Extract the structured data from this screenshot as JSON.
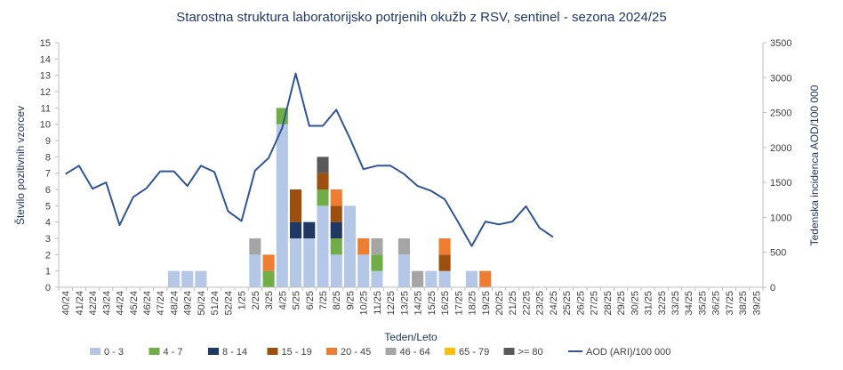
{
  "chart_data": {
    "type": "bar",
    "title": "Starostna struktura  laboratorijsko potrjenih okužb z RSV, sentinel - sezona 2024/25",
    "xlabel": "Teden/Leto",
    "ylabel": "Število pozitivnih vzorcev",
    "ylabel_right": "Tedenska incidenca AOD/100 000",
    "ylim": [
      0,
      15
    ],
    "ylim_right": [
      0,
      3500
    ],
    "yticks": [
      "0",
      "1",
      "2",
      "3",
      "4",
      "5",
      "6",
      "7",
      "8",
      "9",
      "10",
      "11",
      "12",
      "13",
      "14",
      "15"
    ],
    "yticks_right": [
      "0",
      "500",
      "1000",
      "1500",
      "2000",
      "2500",
      "3000",
      "3500"
    ],
    "stacked": true,
    "legend_position": "bottom",
    "categories": [
      "40/24",
      "41/24",
      "42/24",
      "43/24",
      "44/24",
      "45/24",
      "46/24",
      "47/24",
      "48/24",
      "49/24",
      "50/24",
      "51/24",
      "52/24",
      "1/25",
      "2/25",
      "3/25",
      "4/25",
      "5/25",
      "6/25",
      "7/25",
      "8/25",
      "9/25",
      "10/25",
      "11/25",
      "12/25",
      "13/25",
      "14/25",
      "15/25",
      "16/25",
      "17/25",
      "18/25",
      "19/25",
      "20/25",
      "21/25",
      "22/25",
      "23/25",
      "24/25",
      "25/25",
      "26/25",
      "27/25",
      "28/25",
      "29/25",
      "30/25",
      "31/25",
      "32/25",
      "33/25",
      "34/25",
      "35/25",
      "36/25",
      "37/25",
      "38/25",
      "39/25"
    ],
    "series": [
      {
        "name": "0 - 3",
        "color": "#b4c7e7",
        "values": [
          0,
          0,
          0,
          0,
          0,
          0,
          0,
          0,
          1,
          1,
          1,
          0,
          0,
          0,
          2,
          0,
          10,
          3,
          3,
          5,
          2,
          5,
          2,
          1,
          0,
          2,
          0,
          1,
          1,
          0,
          1,
          0,
          0,
          0,
          0,
          0,
          0,
          0,
          0,
          0,
          0,
          0,
          0,
          0,
          0,
          0,
          0,
          0,
          0,
          0,
          0,
          0
        ]
      },
      {
        "name": "4 - 7",
        "color": "#70ad47",
        "values": [
          0,
          0,
          0,
          0,
          0,
          0,
          0,
          0,
          0,
          0,
          0,
          0,
          0,
          0,
          0,
          1,
          1,
          0,
          0,
          1,
          1,
          0,
          0,
          1,
          0,
          0,
          0,
          0,
          0,
          0,
          0,
          0,
          0,
          0,
          0,
          0,
          0,
          0,
          0,
          0,
          0,
          0,
          0,
          0,
          0,
          0,
          0,
          0,
          0,
          0,
          0,
          0
        ]
      },
      {
        "name": "8 - 14",
        "color": "#203864",
        "values": [
          0,
          0,
          0,
          0,
          0,
          0,
          0,
          0,
          0,
          0,
          0,
          0,
          0,
          0,
          0,
          0,
          0,
          1,
          1,
          0,
          1,
          0,
          0,
          0,
          0,
          0,
          0,
          0,
          0,
          0,
          0,
          0,
          0,
          0,
          0,
          0,
          0,
          0,
          0,
          0,
          0,
          0,
          0,
          0,
          0,
          0,
          0,
          0,
          0,
          0,
          0,
          0
        ]
      },
      {
        "name": "15 - 19",
        "color": "#9c4f0f",
        "values": [
          0,
          0,
          0,
          0,
          0,
          0,
          0,
          0,
          0,
          0,
          0,
          0,
          0,
          0,
          0,
          0,
          0,
          2,
          0,
          1,
          1,
          0,
          0,
          0,
          0,
          0,
          0,
          0,
          1,
          0,
          0,
          0,
          0,
          0,
          0,
          0,
          0,
          0,
          0,
          0,
          0,
          0,
          0,
          0,
          0,
          0,
          0,
          0,
          0,
          0,
          0,
          0
        ]
      },
      {
        "name": "20 - 45",
        "color": "#ed7d31",
        "values": [
          0,
          0,
          0,
          0,
          0,
          0,
          0,
          0,
          0,
          0,
          0,
          0,
          0,
          0,
          0,
          1,
          0,
          0,
          0,
          0,
          1,
          0,
          1,
          0,
          0,
          0,
          0,
          0,
          1,
          0,
          0,
          1,
          0,
          0,
          0,
          0,
          0,
          0,
          0,
          0,
          0,
          0,
          0,
          0,
          0,
          0,
          0,
          0,
          0,
          0,
          0,
          0
        ]
      },
      {
        "name": "46 - 64",
        "color": "#a5a5a5",
        "values": [
          0,
          0,
          0,
          0,
          0,
          0,
          0,
          0,
          0,
          0,
          0,
          0,
          0,
          0,
          1,
          0,
          0,
          0,
          0,
          0,
          0,
          0,
          0,
          1,
          0,
          1,
          1,
          0,
          0,
          0,
          0,
          0,
          0,
          0,
          0,
          0,
          0,
          0,
          0,
          0,
          0,
          0,
          0,
          0,
          0,
          0,
          0,
          0,
          0,
          0,
          0,
          0
        ]
      },
      {
        "name": "65 - 79",
        "color": "#ffc000",
        "values": [
          0,
          0,
          0,
          0,
          0,
          0,
          0,
          0,
          0,
          0,
          0,
          0,
          0,
          0,
          0,
          0,
          0,
          0,
          0,
          0,
          0,
          0,
          0,
          0,
          0,
          0,
          0,
          0,
          0,
          0,
          0,
          0,
          0,
          0,
          0,
          0,
          0,
          0,
          0,
          0,
          0,
          0,
          0,
          0,
          0,
          0,
          0,
          0,
          0,
          0,
          0,
          0
        ]
      },
      {
        "name": ">= 80",
        "color": "#595959",
        "values": [
          0,
          0,
          0,
          0,
          0,
          0,
          0,
          0,
          0,
          0,
          0,
          0,
          0,
          0,
          0,
          0,
          0,
          0,
          0,
          1,
          0,
          0,
          0,
          0,
          0,
          0,
          0,
          0,
          0,
          0,
          0,
          0,
          0,
          0,
          0,
          0,
          0,
          0,
          0,
          0,
          0,
          0,
          0,
          0,
          0,
          0,
          0,
          0,
          0,
          0,
          0,
          0
        ]
      }
    ],
    "line_series": {
      "name": "AOD (ARI)/100 000",
      "color": "#2f5597",
      "axis": "right",
      "values": [
        1620,
        1740,
        1410,
        1500,
        890,
        1290,
        1420,
        1660,
        1660,
        1450,
        1740,
        1650,
        1090,
        950,
        1670,
        1850,
        2280,
        3060,
        2310,
        2310,
        2540,
        2130,
        1690,
        1740,
        1740,
        1620,
        1450,
        1380,
        1260,
        930,
        590,
        940,
        900,
        940,
        1160,
        850,
        720
      ]
    }
  }
}
